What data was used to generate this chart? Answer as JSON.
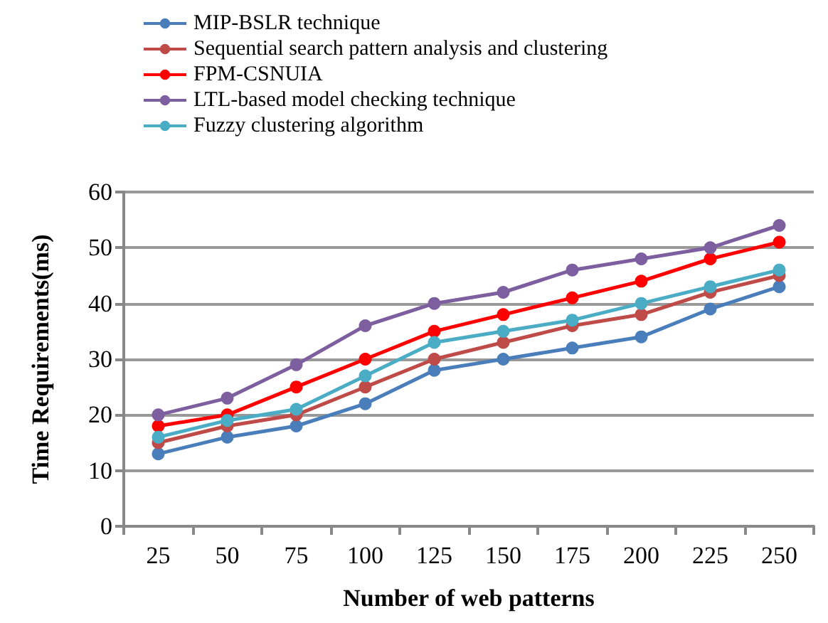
{
  "chart_data": {
    "type": "line",
    "xlabel": "Number of web patterns",
    "ylabel": "Time Requirements(ms)",
    "categories": [
      "25",
      "50",
      "75",
      "100",
      "125",
      "150",
      "175",
      "200",
      "225",
      "250"
    ],
    "series": [
      {
        "name": "MIP-BSLR technique",
        "color": "#4a7ebb",
        "values": [
          13,
          16,
          18,
          22,
          28,
          30,
          32,
          34,
          39,
          43
        ]
      },
      {
        "name": "Sequential search pattern analysis and clustering",
        "color": "#be4b48",
        "values": [
          15,
          18,
          20,
          25,
          30,
          33,
          36,
          38,
          42,
          45
        ]
      },
      {
        "name": "FPM-CSNUIA",
        "color": "#ff0000",
        "values": [
          18,
          20,
          25,
          30,
          35,
          38,
          41,
          44,
          48,
          51
        ]
      },
      {
        "name": "LTL-based model checking technique",
        "color": "#7d5fa0",
        "values": [
          20,
          23,
          29,
          36,
          40,
          42,
          46,
          48,
          50,
          54
        ]
      },
      {
        "name": "Fuzzy clustering algorithm",
        "color": "#4bacc6",
        "values": [
          16,
          19,
          21,
          27,
          33,
          35,
          37,
          40,
          43,
          46
        ]
      }
    ],
    "ylim": [
      0,
      60
    ],
    "yticks": [
      0,
      10,
      20,
      30,
      40,
      50,
      60
    ],
    "grid": "y",
    "legend": "top",
    "marker": "circle",
    "line_style": "solid"
  }
}
